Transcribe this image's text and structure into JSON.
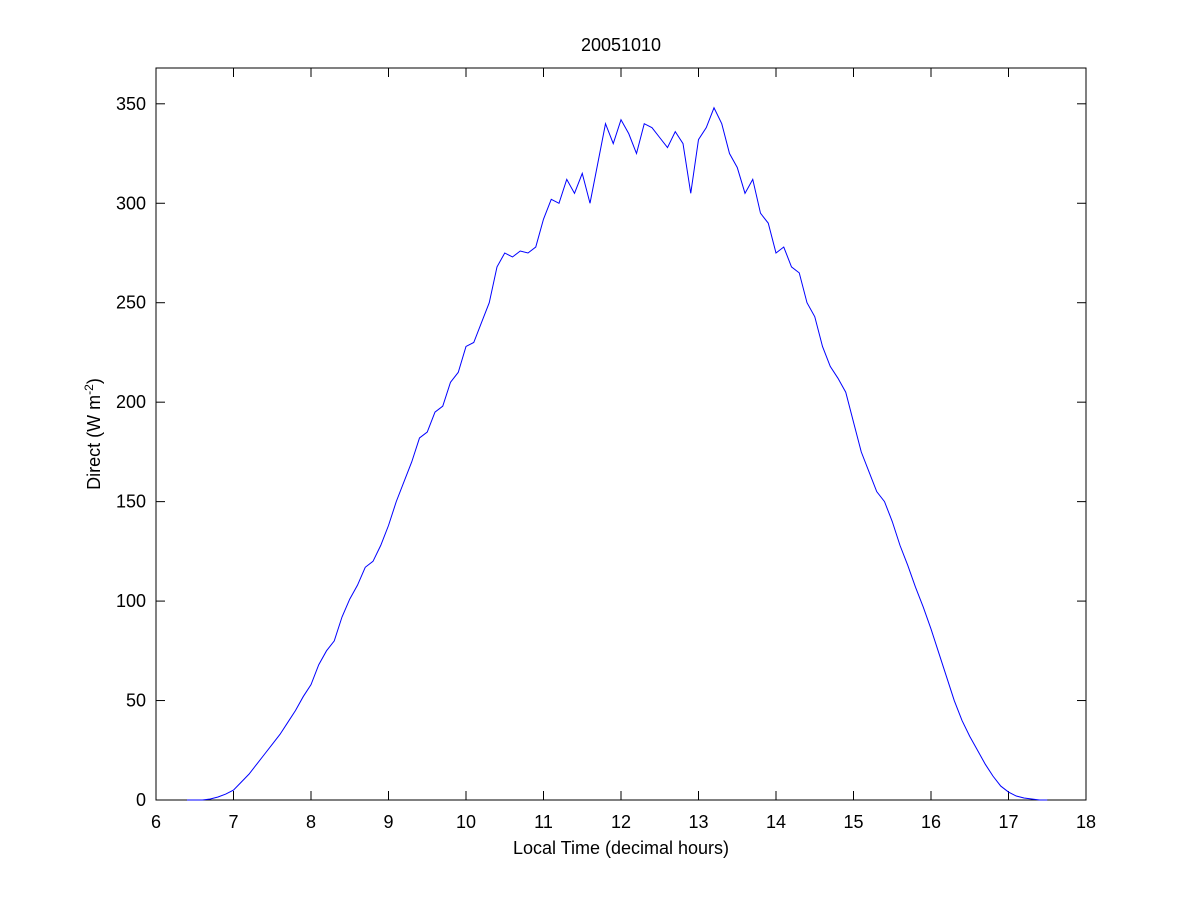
{
  "chart_data": {
    "type": "line",
    "title": "20051010",
    "xlabel": "Local Time (decimal hours)",
    "ylabel": [
      "Direct (W m",
      "-2",
      ")"
    ],
    "x": [
      6.4,
      6.5,
      6.6,
      6.7,
      6.8,
      6.9,
      7.0,
      7.1,
      7.2,
      7.3,
      7.4,
      7.5,
      7.6,
      7.7,
      7.8,
      7.9,
      8.0,
      8.1,
      8.2,
      8.3,
      8.4,
      8.5,
      8.6,
      8.7,
      8.8,
      8.9,
      9.0,
      9.1,
      9.2,
      9.3,
      9.4,
      9.5,
      9.6,
      9.7,
      9.8,
      9.9,
      10.0,
      10.1,
      10.2,
      10.3,
      10.4,
      10.5,
      10.6,
      10.7,
      10.8,
      10.9,
      11.0,
      11.1,
      11.2,
      11.3,
      11.4,
      11.5,
      11.6,
      11.7,
      11.8,
      11.9,
      12.0,
      12.1,
      12.2,
      12.3,
      12.4,
      12.5,
      12.6,
      12.7,
      12.8,
      12.9,
      13.0,
      13.1,
      13.2,
      13.3,
      13.4,
      13.5,
      13.6,
      13.7,
      13.8,
      13.9,
      14.0,
      14.1,
      14.2,
      14.3,
      14.4,
      14.5,
      14.6,
      14.7,
      14.8,
      14.9,
      15.0,
      15.1,
      15.2,
      15.3,
      15.4,
      15.5,
      15.6,
      15.7,
      15.8,
      15.9,
      16.0,
      16.1,
      16.2,
      16.3,
      16.4,
      16.5,
      16.6,
      16.7,
      16.8,
      16.9,
      17.0,
      17.1,
      17.2,
      17.3,
      17.4,
      17.5
    ],
    "series": [
      {
        "color": "#0000ff",
        "values": [
          0,
          0,
          0,
          0.5,
          1.5,
          3,
          5,
          9,
          13,
          18,
          23,
          28,
          33,
          39,
          45,
          52,
          58,
          68,
          75,
          80,
          92,
          101,
          108,
          117,
          120,
          128,
          138,
          150,
          160,
          170,
          182,
          185,
          195,
          198,
          210,
          215,
          228,
          230,
          240,
          250,
          268,
          275,
          273,
          276,
          275,
          278,
          292,
          302,
          300,
          312,
          305,
          315,
          300,
          320,
          340,
          330,
          342,
          335,
          325,
          340,
          338,
          333,
          328,
          336,
          330,
          305,
          332,
          338,
          348,
          340,
          325,
          318,
          305,
          312,
          295,
          290,
          275,
          278,
          268,
          265,
          250,
          243,
          228,
          218,
          212,
          205,
          190,
          175,
          165,
          155,
          150,
          140,
          128,
          118,
          107,
          97,
          86,
          74,
          62,
          50,
          40,
          32,
          25,
          18,
          12,
          7,
          4,
          2,
          1,
          0.5,
          0,
          0
        ]
      }
    ],
    "xlim": [
      6,
      18
    ],
    "ylim": [
      0,
      368
    ],
    "xticks": [
      6,
      7,
      8,
      9,
      10,
      11,
      12,
      13,
      14,
      15,
      16,
      17,
      18
    ],
    "yticks": [
      0,
      50,
      100,
      150,
      200,
      250,
      300,
      350
    ]
  }
}
